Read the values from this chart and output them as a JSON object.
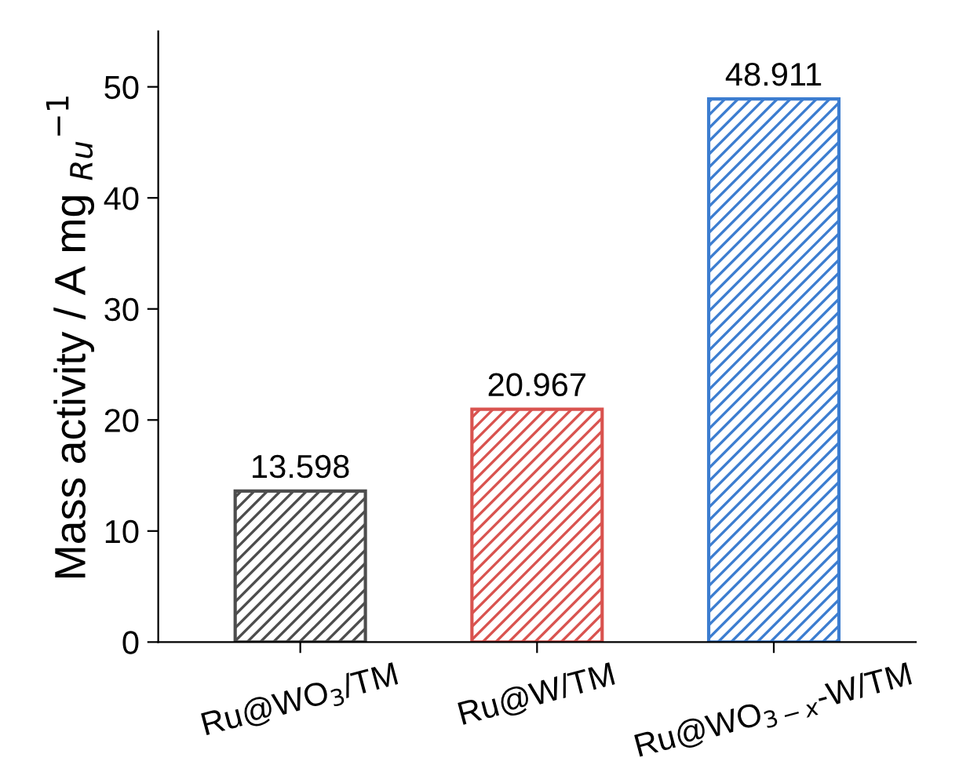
{
  "chart_data": {
    "type": "bar",
    "ylabel": "Mass activity / A mg $_{Ru}$$^{−1}$",
    "categories": [
      "Ru@WO$_{3}$/TM",
      "Ru@W/TM",
      "Ru@WO$_{3−x}$-W/TM"
    ],
    "values": [
      13.598,
      20.967,
      48.911
    ],
    "colors": [
      "#4d4d4d",
      "#d9534f",
      "#3c7dd0"
    ],
    "data_labels": true,
    "ylim": [
      0,
      55
    ],
    "yticks": [
      0,
      10,
      20,
      30,
      40,
      50
    ],
    "grid": false
  }
}
